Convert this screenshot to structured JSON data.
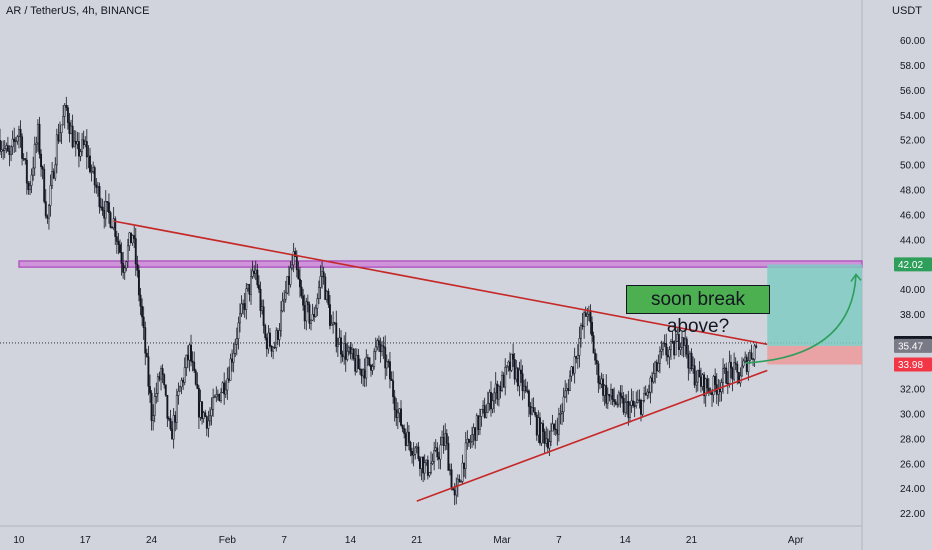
{
  "header": {
    "title": "AR / TetherUS, 4h, BINANCE",
    "currency": "USDT"
  },
  "colors": {
    "background": "#d1d4dc",
    "candle": "#131722",
    "trendline": "#c62828",
    "zone_border": "#ab47bc",
    "zone_fill": "#ce93d8",
    "profit_fill": "#80cbc4",
    "loss_fill": "#ef9a9a",
    "arrow": "#2e9e5b",
    "annotation_fill": "#4caf50",
    "last_price_badge": "#131722",
    "target_badge": "#2e9e5b",
    "stop_badge": "#f23645",
    "mid_badge": "#787b86"
  },
  "annotation": {
    "text": "soon break above?",
    "icon": "curved-arrow-up-icon"
  },
  "chart_data": {
    "type": "candlestick",
    "interval": "4h",
    "yaxis": {
      "position": "right",
      "ylim": [
        21,
        61.5
      ],
      "ticks": [
        22,
        24,
        26,
        28,
        30,
        32,
        34,
        36,
        38,
        40,
        42,
        44,
        46,
        48,
        50,
        52,
        54,
        56,
        58,
        60
      ],
      "tick_labels": [
        "22.00",
        "24.00",
        "26.00",
        "28.00",
        "30.00",
        "32.00",
        "34.00",
        "36.00",
        "38.00",
        "40.00",
        "42.00",
        "44.00",
        "46.00",
        "48.00",
        "50.00",
        "52.00",
        "54.00",
        "56.00",
        "58.00",
        "60.00"
      ]
    },
    "xaxis": {
      "xlim": [
        "2024-01-08",
        "2024-04-08"
      ],
      "ticks": [
        {
          "label": "10",
          "date": "2024-01-10"
        },
        {
          "label": "17",
          "date": "2024-01-17"
        },
        {
          "label": "24",
          "date": "2024-01-24"
        },
        {
          "label": "Feb",
          "date": "2024-02-01"
        },
        {
          "label": "7",
          "date": "2024-02-07"
        },
        {
          "label": "14",
          "date": "2024-02-14"
        },
        {
          "label": "21",
          "date": "2024-02-21"
        },
        {
          "label": "Mar",
          "date": "2024-03-01"
        },
        {
          "label": "7",
          "date": "2024-03-07"
        },
        {
          "label": "14",
          "date": "2024-03-14"
        },
        {
          "label": "21",
          "date": "2024-03-21"
        },
        {
          "label": "Apr",
          "date": "2024-04-01"
        }
      ]
    },
    "price_path": [
      [
        "2024-01-08",
        52.0
      ],
      [
        "2024-01-09",
        50.5
      ],
      [
        "2024-01-10",
        53.0
      ],
      [
        "2024-01-11",
        48.0
      ],
      [
        "2024-01-12",
        52.5
      ],
      [
        "2024-01-13",
        45.5
      ],
      [
        "2024-01-14",
        52.0
      ],
      [
        "2024-01-15",
        54.5
      ],
      [
        "2024-01-16",
        51.0
      ],
      [
        "2024-01-17",
        51.5
      ],
      [
        "2024-01-18",
        48.5
      ],
      [
        "2024-01-19",
        46.5
      ],
      [
        "2024-01-20",
        45.5
      ],
      [
        "2024-01-21",
        42.0
      ],
      [
        "2024-01-22",
        44.5
      ],
      [
        "2024-01-23",
        37.5
      ],
      [
        "2024-01-24",
        30.0
      ],
      [
        "2024-01-25",
        33.5
      ],
      [
        "2024-01-26",
        28.0
      ],
      [
        "2024-01-27",
        32.0
      ],
      [
        "2024-01-28",
        35.0
      ],
      [
        "2024-01-29",
        30.5
      ],
      [
        "2024-01-30",
        29.5
      ],
      [
        "2024-01-31",
        31.5
      ],
      [
        "2024-02-01",
        33.0
      ],
      [
        "2024-02-02",
        36.5
      ],
      [
        "2024-02-03",
        39.5
      ],
      [
        "2024-02-04",
        41.5
      ],
      [
        "2024-02-05",
        36.0
      ],
      [
        "2024-02-06",
        35.5
      ],
      [
        "2024-02-07",
        39.0
      ],
      [
        "2024-02-08",
        42.5
      ],
      [
        "2024-02-09",
        38.5
      ],
      [
        "2024-02-10",
        37.5
      ],
      [
        "2024-02-11",
        41.5
      ],
      [
        "2024-02-12",
        37.0
      ],
      [
        "2024-02-13",
        35.5
      ],
      [
        "2024-02-14",
        34.5
      ],
      [
        "2024-02-15",
        33.5
      ],
      [
        "2024-02-16",
        34.0
      ],
      [
        "2024-02-17",
        35.5
      ],
      [
        "2024-02-18",
        33.5
      ],
      [
        "2024-02-19",
        30.0
      ],
      [
        "2024-02-20",
        28.0
      ],
      [
        "2024-02-21",
        27.0
      ],
      [
        "2024-02-22",
        25.5
      ],
      [
        "2024-02-23",
        26.5
      ],
      [
        "2024-02-24",
        28.0
      ],
      [
        "2024-02-25",
        23.0
      ],
      [
        "2024-02-26",
        26.5
      ],
      [
        "2024-02-27",
        28.5
      ],
      [
        "2024-02-28",
        30.0
      ],
      [
        "2024-02-29",
        31.5
      ],
      [
        "2024-03-01",
        32.5
      ],
      [
        "2024-03-02",
        34.0
      ],
      [
        "2024-03-03",
        32.5
      ],
      [
        "2024-03-04",
        30.5
      ],
      [
        "2024-03-05",
        28.5
      ],
      [
        "2024-03-06",
        28.0
      ],
      [
        "2024-03-07",
        29.5
      ],
      [
        "2024-03-08",
        32.5
      ],
      [
        "2024-03-09",
        35.5
      ],
      [
        "2024-03-10",
        38.5
      ],
      [
        "2024-03-11",
        33.5
      ],
      [
        "2024-03-12",
        31.5
      ],
      [
        "2024-03-13",
        31.0
      ],
      [
        "2024-03-14",
        30.5
      ],
      [
        "2024-03-15",
        30.5
      ],
      [
        "2024-03-16",
        31.0
      ],
      [
        "2024-03-17",
        33.0
      ],
      [
        "2024-03-18",
        35.0
      ],
      [
        "2024-03-19",
        35.0
      ],
      [
        "2024-03-20",
        36.5
      ],
      [
        "2024-03-21",
        33.5
      ],
      [
        "2024-03-22",
        32.5
      ],
      [
        "2024-03-23",
        32.0
      ],
      [
        "2024-03-24",
        32.5
      ],
      [
        "2024-03-25",
        33.5
      ],
      [
        "2024-03-26",
        33.0
      ],
      [
        "2024-03-27",
        34.5
      ],
      [
        "2024-03-28",
        35.7
      ]
    ],
    "lines": [
      {
        "name": "descending-trendline",
        "from": [
          "2024-01-20",
          45.5
        ],
        "to": [
          "2024-03-29",
          35.6
        ]
      },
      {
        "name": "ascending-trendline",
        "from": [
          "2024-02-21",
          23.0
        ],
        "to": [
          "2024-03-29",
          33.5
        ]
      }
    ],
    "zones": [
      {
        "name": "resistance-zone",
        "from": "2024-01-10",
        "to": "2024-04-08",
        "low": 41.8,
        "high": 42.3
      }
    ],
    "position": {
      "from": "2024-03-29",
      "to": "2024-04-08",
      "entry": 35.47,
      "target": 42.02,
      "stop": 33.98
    },
    "last_price": 35.71,
    "price_labels": [
      {
        "name": "target-price-badge",
        "value": "42.02",
        "price": 42.02,
        "color_key": "target_badge"
      },
      {
        "name": "last-price-badge",
        "value": "35.71",
        "price": 35.71,
        "color_key": "last_price_badge"
      },
      {
        "name": "entry-price-badge",
        "value": "35.47",
        "price": 35.47,
        "color_key": "mid_badge"
      },
      {
        "name": "stop-price-badge",
        "value": "33.98",
        "price": 33.98,
        "color_key": "stop_badge"
      }
    ]
  }
}
